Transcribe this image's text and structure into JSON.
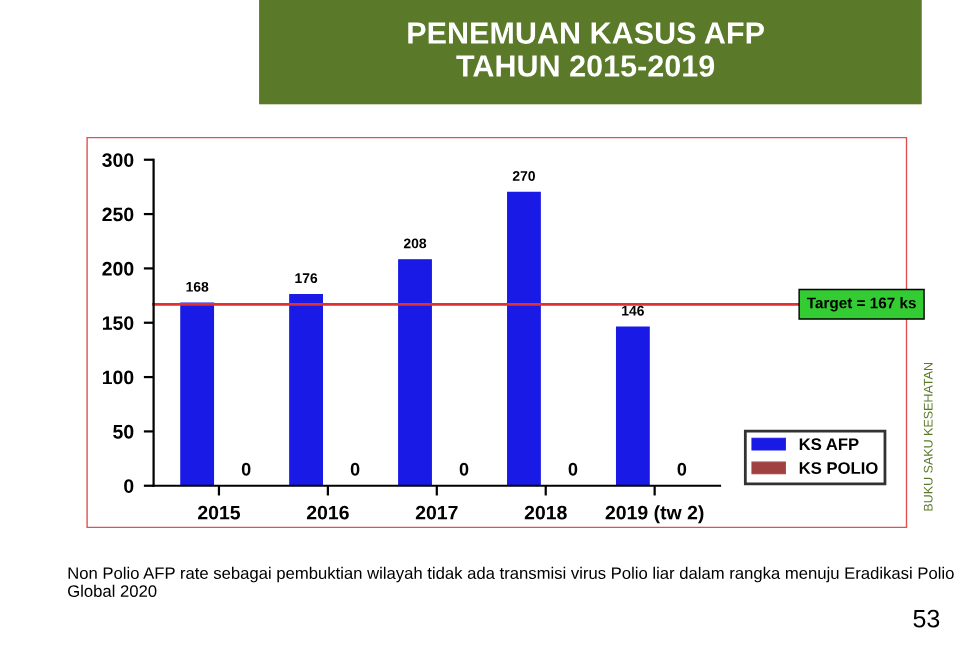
{
  "chart_data": {
    "type": "bar",
    "title": "PENEMUAN KASUS AFP\nTAHUN 2015-2019",
    "categories": [
      "2015",
      "2016",
      "2017",
      "2018",
      "2019 (tw 2)"
    ],
    "series": [
      {
        "name": "KS AFP",
        "color": "#1a1ae6",
        "values": [
          168,
          176,
          208,
          270,
          146
        ]
      },
      {
        "name": "KS POLIO",
        "color": "#a04040",
        "values": [
          0,
          0,
          0,
          0,
          0
        ]
      }
    ],
    "ylim": [
      0,
      300
    ],
    "yticks": [
      0,
      50,
      100,
      150,
      200,
      250,
      300
    ],
    "ref_lines": [
      {
        "axis": "y",
        "value": 167,
        "label": "Target = 167 ks",
        "color": "#e03030"
      }
    ],
    "data_labels": true,
    "legend": "bottom right",
    "grid": false,
    "annotations": [
      "Non Polio AFP rate sebagai pembuktian wilayah tidak ada transmisi virus Polio liar dalam rangka menuju Eradikasi Polio Global 2020",
      "BUKU SAKU KESEHATAN",
      "53"
    ]
  }
}
